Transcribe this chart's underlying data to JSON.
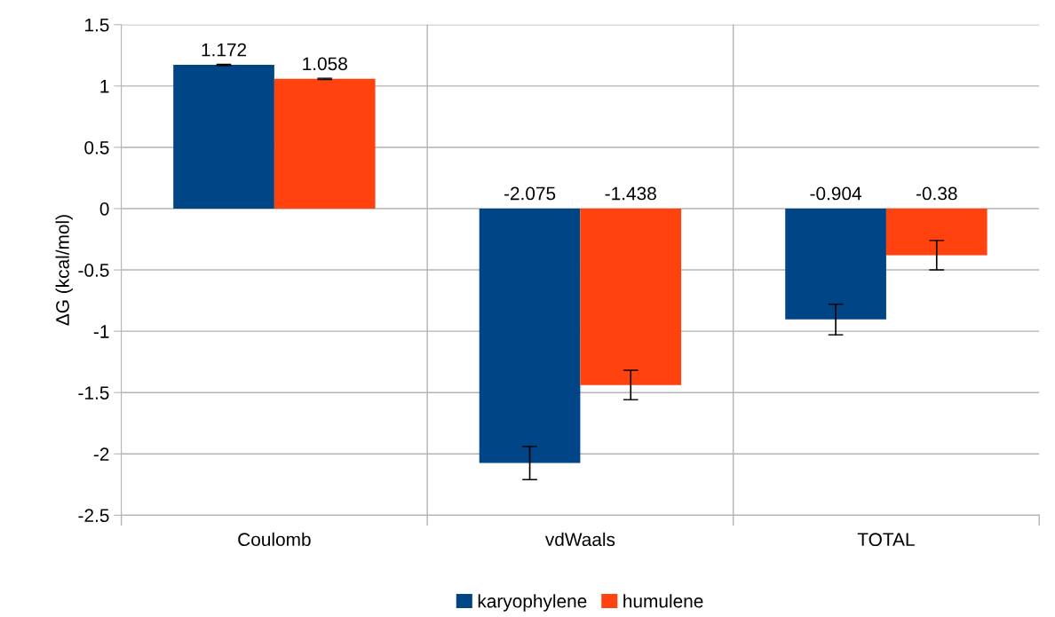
{
  "chart_data": {
    "type": "bar",
    "ylabel": "ΔG (kcal/mol)",
    "categories": [
      "Coulomb",
      "vdWaals",
      "TOTAL"
    ],
    "series": [
      {
        "name": "karyophylene",
        "color": "#004586",
        "values": [
          1.172,
          -2.075,
          -0.904
        ],
        "errors": [
          0.005,
          0.135,
          0.125
        ]
      },
      {
        "name": "humulene",
        "color": "#ff420e",
        "values": [
          1.058,
          -1.438,
          -0.38
        ],
        "errors": [
          0.005,
          0.12,
          0.12
        ]
      }
    ],
    "ylim": [
      -2.5,
      1.5
    ],
    "yticks": [
      -2.5,
      -2,
      -1.5,
      -1,
      -0.5,
      0,
      0.5,
      1,
      1.5
    ],
    "grid": true,
    "legend": "bottom",
    "data_labels": true
  }
}
